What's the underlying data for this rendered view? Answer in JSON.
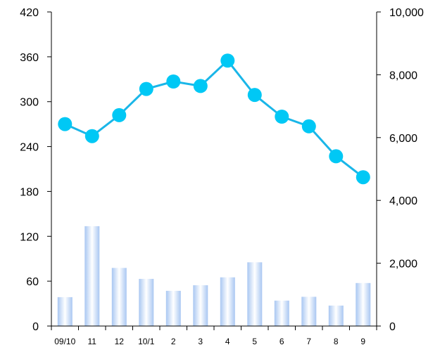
{
  "chart_data": {
    "type": "bar+line",
    "categories": [
      "09/10",
      "11",
      "12",
      "10/1",
      "2",
      "3",
      "4",
      "5",
      "6",
      "7",
      "8",
      "9"
    ],
    "series": [
      {
        "type": "line",
        "axis": "left",
        "values": [
          270,
          254,
          282,
          317,
          327,
          321,
          355,
          309,
          280,
          267,
          227,
          199
        ]
      },
      {
        "type": "bar",
        "axis": "right",
        "values": [
          920,
          3180,
          1850,
          1500,
          1120,
          1300,
          1550,
          2030,
          810,
          930,
          650,
          1370
        ]
      }
    ],
    "left_axis": {
      "ylim": [
        0,
        420
      ],
      "ticks": [
        "0",
        "60",
        "120",
        "180",
        "240",
        "300",
        "360",
        "420"
      ]
    },
    "right_axis": {
      "ylim": [
        0,
        10000
      ],
      "ticks": [
        "0",
        "2,000",
        "4,000",
        "6,000",
        "8,000",
        "10,000"
      ]
    },
    "grid": false,
    "legend": "none",
    "colors": {
      "line": "#1ab6e8",
      "marker": "#00c8f5",
      "bar_edge": "#a9c7f2",
      "bar_center": "#ffffff"
    }
  }
}
